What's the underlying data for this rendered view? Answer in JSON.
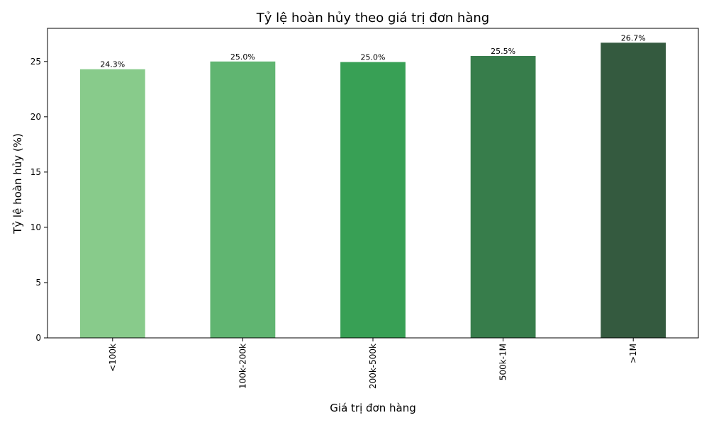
{
  "chart_data": {
    "type": "bar",
    "title": "Tỷ lệ hoàn hủy theo giá trị đơn hàng",
    "xlabel": "Giá trị đơn hàng",
    "ylabel": "Tỷ lệ hoàn hủy (%)",
    "categories": [
      "<100k",
      "100k-200k",
      "200k-500k",
      "500k-1M",
      ">1M"
    ],
    "values": [
      24.3,
      25.0,
      24.95,
      25.5,
      26.7
    ],
    "value_labels": [
      "24.3%",
      "25.0%",
      "25.0%",
      "25.5%",
      "26.7%"
    ],
    "colors": [
      "#88cb8b",
      "#60b571",
      "#38a055",
      "#377d4b",
      "#345a3f"
    ],
    "ylim": [
      0,
      28
    ],
    "yticks": [
      0,
      5,
      10,
      15,
      20,
      25
    ],
    "x_tick_rotation": "vertical",
    "grid": false,
    "legend": "none"
  }
}
